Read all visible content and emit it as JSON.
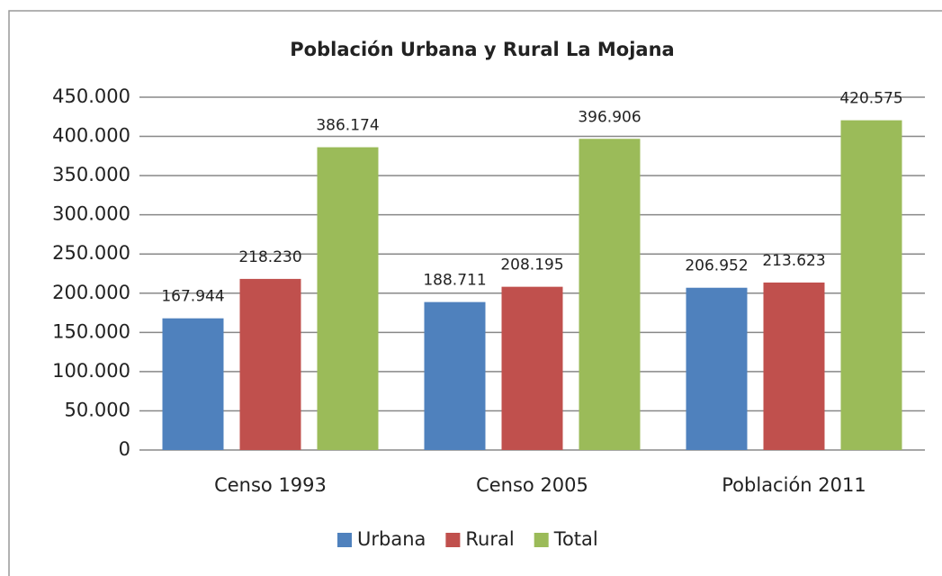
{
  "chart_data": {
    "type": "bar",
    "title": "Población Urbana y Rural La Mojana",
    "categories": [
      "Censo 1993",
      "Censo 2005",
      "Población 2011"
    ],
    "series": [
      {
        "name": "Urbana",
        "color": "#4f81bd",
        "values": [
          167944,
          188711,
          206952
        ],
        "value_labels": [
          "167.944",
          "188.711",
          "206.952"
        ]
      },
      {
        "name": "Rural",
        "color": "#c0504d",
        "values": [
          218230,
          208195,
          213623
        ],
        "value_labels": [
          "218.230",
          "208.195",
          "213.623"
        ]
      },
      {
        "name": "Total",
        "color": "#9bbb59",
        "values": [
          386174,
          396906,
          420575
        ],
        "value_labels": [
          "386.174",
          "396.906",
          "420.575"
        ]
      }
    ],
    "ylim": [
      0,
      450000
    ],
    "yticks": [
      0,
      {
        "value": 50000,
        "label": "50.000"
      },
      {
        "value": 100000,
        "label": "100.000"
      },
      {
        "value": 150000,
        "label": "150.000"
      },
      {
        "value": 200000,
        "label": "200.000"
      },
      {
        "value": 250000,
        "label": "250.000"
      },
      {
        "value": 300000,
        "label": "300.000"
      },
      {
        "value": 350000,
        "label": "350.000"
      },
      {
        "value": 400000,
        "label": "400.000"
      },
      {
        "value": 450000,
        "label": "450.000"
      }
    ],
    "grid": true,
    "legend": "bottom"
  }
}
